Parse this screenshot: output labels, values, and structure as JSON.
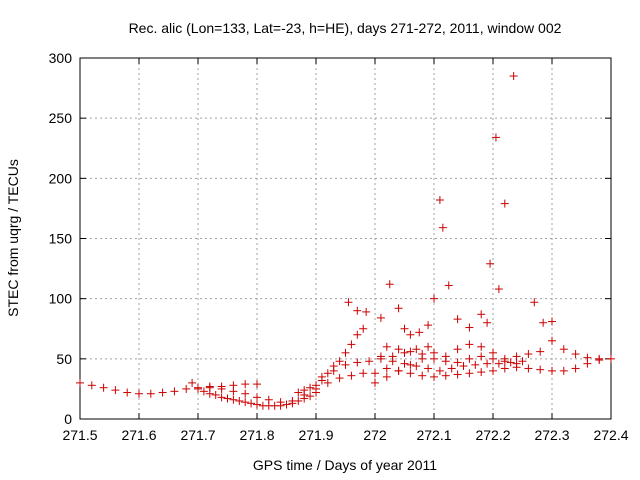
{
  "chart_data": {
    "type": "scatter",
    "title": "Rec. alic (Lon=133, Lat=-23, h=HE), days 271-272, 2011, window 002",
    "xlabel": "GPS time / Days of year 2011",
    "ylabel": "STEC from uqrg / TECUs",
    "xlim": [
      271.5,
      272.4
    ],
    "ylim": [
      0,
      300
    ],
    "xticks": [
      "271.5",
      "271.6",
      "271.7",
      "271.8",
      "271.9",
      "272",
      "272.1",
      "272.2",
      "272.3",
      "272.4"
    ],
    "yticks": [
      "0",
      "50",
      "100",
      "150",
      "200",
      "250",
      "300"
    ],
    "grid": true,
    "marker": "+",
    "color": "#cc0000",
    "points": [
      [
        271.5,
        30
      ],
      [
        271.52,
        28
      ],
      [
        271.54,
        26
      ],
      [
        271.56,
        24
      ],
      [
        271.58,
        22
      ],
      [
        271.6,
        21
      ],
      [
        271.62,
        21
      ],
      [
        271.64,
        22
      ],
      [
        271.66,
        23
      ],
      [
        271.68,
        25
      ],
      [
        271.7,
        26
      ],
      [
        271.72,
        27
      ],
      [
        271.74,
        27
      ],
      [
        271.76,
        28
      ],
      [
        271.78,
        29
      ],
      [
        271.8,
        29
      ],
      [
        271.69,
        30
      ],
      [
        271.7,
        25
      ],
      [
        271.71,
        23
      ],
      [
        271.72,
        21
      ],
      [
        271.73,
        20
      ],
      [
        271.74,
        18
      ],
      [
        271.75,
        17
      ],
      [
        271.76,
        16
      ],
      [
        271.77,
        15
      ],
      [
        271.78,
        14
      ],
      [
        271.79,
        13
      ],
      [
        271.8,
        12
      ],
      [
        271.81,
        11
      ],
      [
        271.82,
        11
      ],
      [
        271.83,
        11
      ],
      [
        271.84,
        11
      ],
      [
        271.85,
        12
      ],
      [
        271.86,
        13
      ],
      [
        271.87,
        15
      ],
      [
        271.88,
        17
      ],
      [
        271.89,
        19
      ],
      [
        271.9,
        22
      ],
      [
        271.72,
        26
      ],
      [
        271.74,
        25
      ],
      [
        271.76,
        23
      ],
      [
        271.78,
        21
      ],
      [
        271.8,
        18
      ],
      [
        271.82,
        16
      ],
      [
        271.84,
        14
      ],
      [
        271.86,
        15
      ],
      [
        271.88,
        20
      ],
      [
        271.9,
        25
      ],
      [
        271.92,
        30
      ],
      [
        271.94,
        34
      ],
      [
        271.96,
        36
      ],
      [
        271.98,
        38
      ],
      [
        271.87,
        22
      ],
      [
        271.88,
        24
      ],
      [
        271.89,
        26
      ],
      [
        271.9,
        28
      ],
      [
        271.91,
        32
      ],
      [
        271.92,
        38
      ],
      [
        271.93,
        44
      ],
      [
        271.94,
        48
      ],
      [
        271.95,
        55
      ],
      [
        271.96,
        62
      ],
      [
        271.97,
        70
      ],
      [
        271.98,
        75
      ],
      [
        271.91,
        35
      ],
      [
        271.93,
        40
      ],
      [
        271.95,
        45
      ],
      [
        271.97,
        47
      ],
      [
        271.99,
        48
      ],
      [
        272.01,
        50
      ],
      [
        272.03,
        52
      ],
      [
        272.05,
        55
      ],
      [
        272.07,
        58
      ],
      [
        272.09,
        60
      ],
      [
        271.955,
        97
      ],
      [
        271.97,
        90
      ],
      [
        271.985,
        89
      ],
      [
        272.01,
        84
      ],
      [
        272.025,
        112
      ],
      [
        272.04,
        92
      ],
      [
        272.05,
        75
      ],
      [
        272.06,
        70
      ],
      [
        272.075,
        72
      ],
      [
        272.09,
        78
      ],
      [
        272.1,
        100
      ],
      [
        272.11,
        182
      ],
      [
        272.115,
        159
      ],
      [
        272.125,
        111
      ],
      [
        272.14,
        83
      ],
      [
        272.16,
        76
      ],
      [
        272.18,
        87
      ],
      [
        272.19,
        80
      ],
      [
        272.195,
        129
      ],
      [
        272.205,
        234
      ],
      [
        272.21,
        108
      ],
      [
        272.22,
        179
      ],
      [
        272.235,
        285
      ],
      [
        272.27,
        97
      ],
      [
        272.285,
        80
      ],
      [
        272.3,
        81
      ],
      [
        272.0,
        30
      ],
      [
        272.02,
        35
      ],
      [
        272.04,
        40
      ],
      [
        272.06,
        45
      ],
      [
        272.08,
        50
      ],
      [
        272.1,
        55
      ],
      [
        272.12,
        52
      ],
      [
        272.14,
        58
      ],
      [
        272.16,
        62
      ],
      [
        272.18,
        60
      ],
      [
        272.2,
        55
      ],
      [
        272.22,
        50
      ],
      [
        272.24,
        52
      ],
      [
        272.26,
        54
      ],
      [
        272.28,
        56
      ],
      [
        272.3,
        65
      ],
      [
        272.32,
        58
      ],
      [
        272.34,
        54
      ],
      [
        272.36,
        51
      ],
      [
        272.38,
        50
      ],
      [
        272.4,
        50
      ],
      [
        272.0,
        38
      ],
      [
        272.02,
        42
      ],
      [
        272.04,
        40
      ],
      [
        272.06,
        38
      ],
      [
        272.08,
        36
      ],
      [
        272.1,
        35
      ],
      [
        272.12,
        36
      ],
      [
        272.14,
        37
      ],
      [
        272.16,
        38
      ],
      [
        272.18,
        39
      ],
      [
        272.2,
        40
      ],
      [
        272.22,
        42
      ],
      [
        272.24,
        43
      ],
      [
        272.26,
        42
      ],
      [
        272.28,
        41
      ],
      [
        272.3,
        40
      ],
      [
        272.32,
        40
      ],
      [
        272.34,
        42
      ],
      [
        272.36,
        46
      ],
      [
        272.38,
        49
      ],
      [
        272.01,
        52
      ],
      [
        272.03,
        48
      ],
      [
        272.05,
        46
      ],
      [
        272.07,
        44
      ],
      [
        272.09,
        42
      ],
      [
        272.11,
        40
      ],
      [
        272.13,
        42
      ],
      [
        272.15,
        44
      ],
      [
        272.17,
        45
      ],
      [
        272.19,
        46
      ],
      [
        272.21,
        46
      ],
      [
        272.23,
        47
      ],
      [
        272.25,
        48
      ],
      [
        272.02,
        60
      ],
      [
        272.04,
        58
      ],
      [
        272.06,
        56
      ],
      [
        272.08,
        54
      ],
      [
        272.1,
        50
      ],
      [
        272.12,
        48
      ],
      [
        272.14,
        47
      ],
      [
        272.16,
        50
      ],
      [
        272.18,
        52
      ],
      [
        272.2,
        50
      ],
      [
        272.22,
        48
      ],
      [
        272.24,
        46
      ]
    ]
  }
}
